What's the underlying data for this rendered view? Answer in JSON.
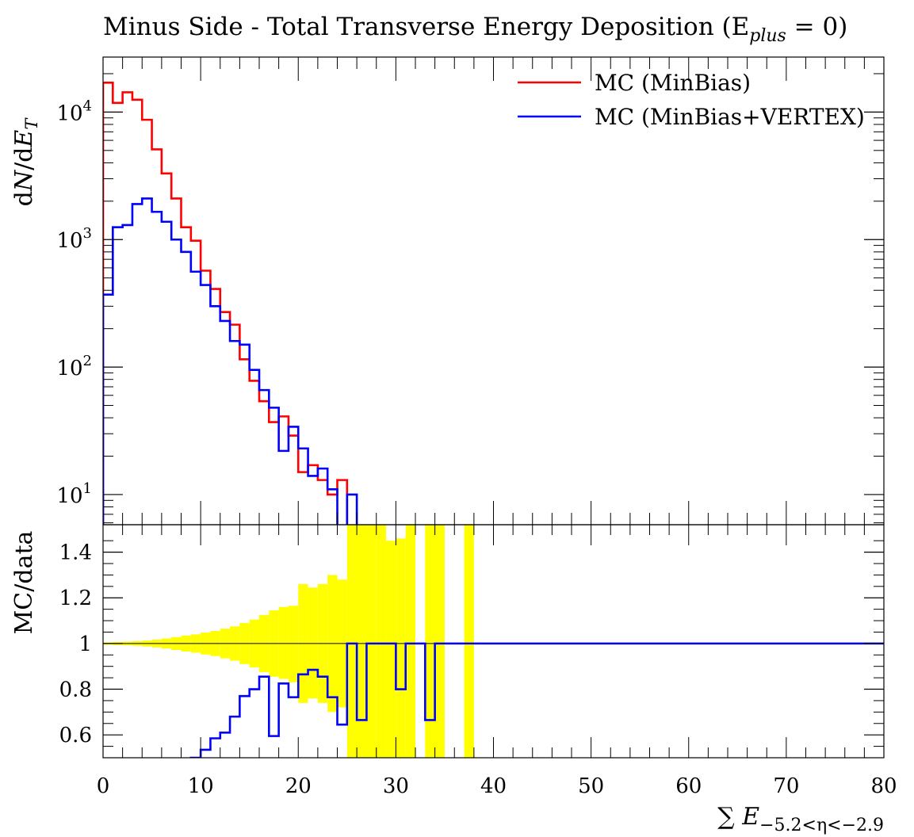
{
  "chart_data": {
    "title": "Minus Side - Total Transverse Energy Deposition (E",
    "title_sub": "plus",
    "title_tail": " = 0)",
    "xlabel": "∑ E",
    "xlabel_sub": "−5.2<η<−2.9",
    "xlim": [
      0,
      80
    ],
    "xticks": [
      "0",
      "10",
      "20",
      "30",
      "40",
      "50",
      "60",
      "70",
      "80"
    ],
    "main_panel": {
      "type": "line",
      "ylabel": "dN/dE_T",
      "ylabel_parts": [
        "d",
        "N",
        "/d",
        "E",
        "T"
      ],
      "yscale": "log",
      "ylim": [
        5.8,
        27000
      ],
      "yticks": [
        {
          "base": "10",
          "exp": "1",
          "value": 10
        },
        {
          "base": "10",
          "exp": "2",
          "value": 100
        },
        {
          "base": "10",
          "exp": "3",
          "value": 1000
        },
        {
          "base": "10",
          "exp": "4",
          "value": 10000
        }
      ],
      "legend_position": "top-right",
      "series": [
        {
          "name": "MC (MinBias)",
          "color": "#ff0000",
          "values": [
            17000,
            11800,
            14300,
            12500,
            8700,
            5100,
            3300,
            2100,
            1250,
            980,
            570,
            410,
            270,
            215,
            115,
            78,
            54,
            37,
            41,
            29,
            15,
            17,
            13,
            10,
            13
          ]
        },
        {
          "name": "MC (MinBias+VERTEX)",
          "color": "#0000ff",
          "values": [
            370,
            1250,
            1300,
            1900,
            2100,
            1650,
            1380,
            1000,
            800,
            560,
            440,
            300,
            230,
            160,
            150,
            95,
            66,
            48,
            22,
            34,
            23,
            14,
            16,
            11,
            5,
            10
          ]
        }
      ],
      "bin_width": 1
    },
    "ratio_panel": {
      "type": "line",
      "ylabel": "MC/data",
      "ylim": [
        0.5,
        1.52
      ],
      "yticks": [
        "0.6",
        "0.8",
        "1",
        "1.2",
        "1.4"
      ],
      "reference_line": 1,
      "band_color": "#ffff00",
      "band": [
        {
          "x0": 0,
          "x1": 1,
          "lo": 0.995,
          "hi": 1.005
        },
        {
          "x0": 1,
          "x1": 2,
          "lo": 0.993,
          "hi": 1.007
        },
        {
          "x0": 2,
          "x1": 3,
          "lo": 0.992,
          "hi": 1.008
        },
        {
          "x0": 3,
          "x1": 4,
          "lo": 0.99,
          "hi": 1.01
        },
        {
          "x0": 4,
          "x1": 5,
          "lo": 0.987,
          "hi": 1.013
        },
        {
          "x0": 5,
          "x1": 6,
          "lo": 0.983,
          "hi": 1.017
        },
        {
          "x0": 6,
          "x1": 7,
          "lo": 0.978,
          "hi": 1.022
        },
        {
          "x0": 7,
          "x1": 8,
          "lo": 0.972,
          "hi": 1.028
        },
        {
          "x0": 8,
          "x1": 9,
          "lo": 0.965,
          "hi": 1.035
        },
        {
          "x0": 9,
          "x1": 10,
          "lo": 0.96,
          "hi": 1.04
        },
        {
          "x0": 10,
          "x1": 11,
          "lo": 0.952,
          "hi": 1.048
        },
        {
          "x0": 11,
          "x1": 12,
          "lo": 0.945,
          "hi": 1.055
        },
        {
          "x0": 12,
          "x1": 13,
          "lo": 0.935,
          "hi": 1.065
        },
        {
          "x0": 13,
          "x1": 14,
          "lo": 0.925,
          "hi": 1.075
        },
        {
          "x0": 14,
          "x1": 15,
          "lo": 0.91,
          "hi": 1.09
        },
        {
          "x0": 15,
          "x1": 16,
          "lo": 0.895,
          "hi": 1.105
        },
        {
          "x0": 16,
          "x1": 17,
          "lo": 0.875,
          "hi": 1.125
        },
        {
          "x0": 17,
          "x1": 18,
          "lo": 0.855,
          "hi": 1.145
        },
        {
          "x0": 18,
          "x1": 19,
          "lo": 0.845,
          "hi": 1.16
        },
        {
          "x0": 19,
          "x1": 20,
          "lo": 0.83,
          "hi": 1.165
        },
        {
          "x0": 20,
          "x1": 21,
          "lo": 0.74,
          "hi": 1.26
        },
        {
          "x0": 21,
          "x1": 22,
          "lo": 0.76,
          "hi": 1.245
        },
        {
          "x0": 22,
          "x1": 23,
          "lo": 0.74,
          "hi": 1.26
        },
        {
          "x0": 23,
          "x1": 24,
          "lo": 0.7,
          "hi": 1.3
        },
        {
          "x0": 24,
          "x1": 25,
          "lo": 0.72,
          "hi": 1.28
        },
        {
          "x0": 25,
          "x1": 28,
          "lo": 0.5,
          "hi": 1.52
        },
        {
          "x0": 28,
          "x1": 29,
          "lo": 0.5,
          "hi": 1.52
        },
        {
          "x0": 29,
          "x1": 30,
          "lo": 0.5,
          "hi": 1.45
        },
        {
          "x0": 30,
          "x1": 31,
          "lo": 0.5,
          "hi": 1.46
        },
        {
          "x0": 31,
          "x1": 32,
          "lo": 0.5,
          "hi": 1.52
        },
        {
          "x0": 33,
          "x1": 35,
          "lo": 0.5,
          "hi": 1.52
        },
        {
          "x0": 37,
          "x1": 38,
          "lo": 0.5,
          "hi": 1.52
        }
      ],
      "series": [
        {
          "name": "MC (MinBias+VERTEX)",
          "color": "#0000ff",
          "steps": [
            {
              "x0": 9,
              "x1": 10,
              "y": 0.5
            },
            {
              "x0": 10,
              "x1": 11,
              "y": 0.535
            },
            {
              "x0": 11,
              "x1": 12,
              "y": 0.585
            },
            {
              "x0": 12,
              "x1": 13,
              "y": 0.61
            },
            {
              "x0": 13,
              "x1": 14,
              "y": 0.68
            },
            {
              "x0": 14,
              "x1": 15,
              "y": 0.77
            },
            {
              "x0": 15,
              "x1": 16,
              "y": 0.8
            },
            {
              "x0": 16,
              "x1": 17,
              "y": 0.855
            },
            {
              "x0": 17,
              "x1": 18,
              "y": 0.595
            },
            {
              "x0": 18,
              "x1": 19,
              "y": 0.825
            },
            {
              "x0": 19,
              "x1": 20,
              "y": 0.765
            },
            {
              "x0": 20,
              "x1": 21,
              "y": 0.865
            },
            {
              "x0": 21,
              "x1": 22,
              "y": 0.885
            },
            {
              "x0": 22,
              "x1": 23,
              "y": 0.855
            },
            {
              "x0": 23,
              "x1": 24,
              "y": 0.765
            },
            {
              "x0": 24,
              "x1": 25,
              "y": 0.645
            },
            {
              "x0": 25,
              "x1": 26,
              "y": 1.0
            },
            {
              "x0": 26,
              "x1": 27,
              "y": 0.665
            },
            {
              "x0": 27,
              "x1": 30,
              "y": 1.0
            },
            {
              "x0": 30,
              "x1": 31,
              "y": 0.8
            },
            {
              "x0": 31,
              "x1": 33,
              "y": 1.0
            },
            {
              "x0": 33,
              "x1": 34,
              "y": 0.665
            },
            {
              "x0": 34,
              "x1": 80,
              "y": 1.0
            }
          ]
        }
      ]
    }
  }
}
